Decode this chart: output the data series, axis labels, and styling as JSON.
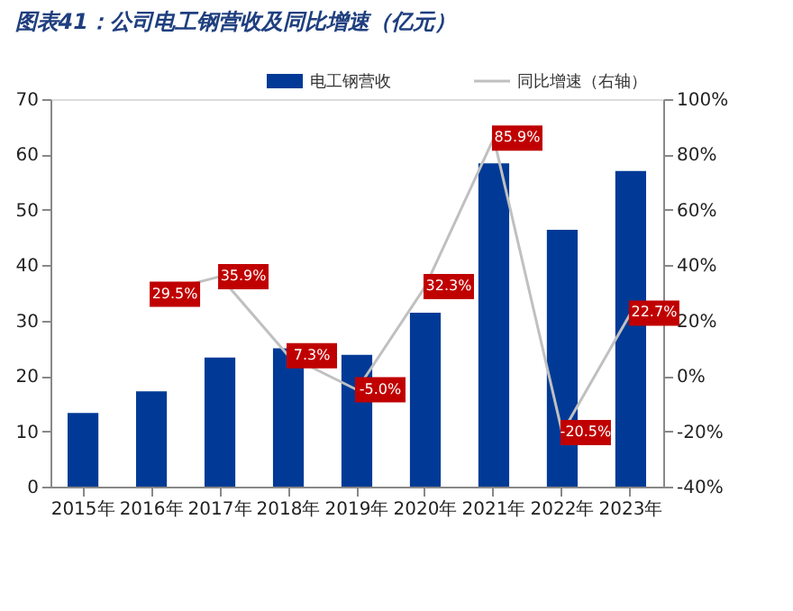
{
  "chart_data": {
    "type": "bar",
    "title": "图表41：公司电工钢营收及同比增速（亿元）",
    "categories": [
      "2015年",
      "2016年",
      "2017年",
      "2018年",
      "2019年",
      "2020年",
      "2021年",
      "2022年",
      "2023年"
    ],
    "series": [
      {
        "name": "电工钢营收",
        "type": "bar",
        "color": "#003a96",
        "values": [
          13.3,
          17.2,
          23.3,
          25.0,
          23.8,
          31.4,
          58.4,
          46.4,
          57.0
        ]
      },
      {
        "name": "同比增速（右轴）",
        "type": "line",
        "axis": "y2",
        "color": "#c0c0c0",
        "values": [
          null,
          29.5,
          35.9,
          7.3,
          -5.0,
          32.3,
          85.9,
          -20.5,
          22.7
        ],
        "value_labels": [
          null,
          "29.5%",
          "35.9%",
          "7.3%",
          "-5.0%",
          "32.3%",
          "85.9%",
          "-20.5%",
          "22.7%"
        ]
      }
    ],
    "ylim": [
      0,
      70
    ],
    "yticks": [
      0,
      10,
      20,
      30,
      40,
      50,
      60,
      70
    ],
    "y2lim": [
      -40,
      100
    ],
    "y2ticks": [
      {
        "value": -40,
        "label": "-40%"
      },
      {
        "value": -20,
        "label": "-20%"
      },
      {
        "value": 0,
        "label": "0%"
      },
      {
        "value": 20,
        "label": "20%"
      },
      {
        "value": 40,
        "label": "40%"
      },
      {
        "value": 60,
        "label": "60%"
      },
      {
        "value": 80,
        "label": "80%"
      },
      {
        "value": 100,
        "label": "100%"
      }
    ],
    "grid": false,
    "legend": "top"
  }
}
